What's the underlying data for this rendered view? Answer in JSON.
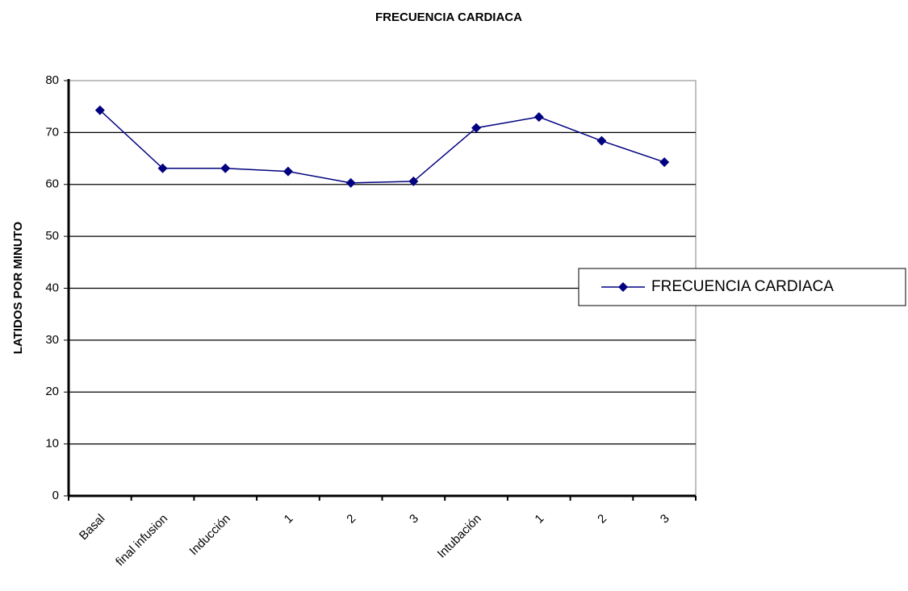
{
  "chart_data": {
    "type": "line",
    "title": "FRECUENCIA CARDIACA",
    "y_label": "LATIDOS POR MINUTO",
    "categories": [
      "Basal",
      "final infusion",
      "Inducción",
      "1",
      "2",
      "3",
      "Intubación",
      "1",
      "2",
      "3"
    ],
    "series": [
      {
        "name": "FRECUENCIA CARDIACA",
        "color": "#000080",
        "values": [
          74.3,
          63.1,
          63.1,
          62.5,
          60.3,
          60.6,
          70.9,
          73.0,
          68.4,
          64.3
        ]
      }
    ],
    "ylim": [
      0,
      80
    ],
    "yticks": [
      0,
      10,
      20,
      30,
      40,
      50,
      60,
      70,
      80
    ],
    "grid": true,
    "legend": "right"
  }
}
